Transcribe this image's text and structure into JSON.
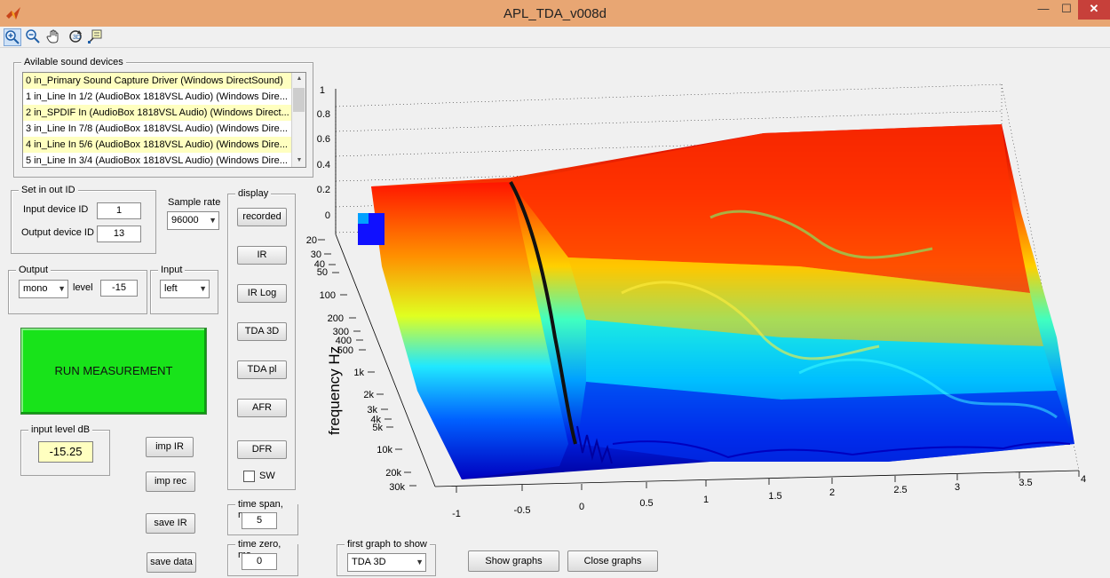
{
  "window": {
    "title": "APL_TDA_v008d",
    "minimize_glyph": "—",
    "maximize_glyph": "☐",
    "close_glyph": "✕"
  },
  "toolbar": {
    "tools": [
      "zoom-in-icon",
      "zoom-out-icon",
      "pan-hand-icon",
      "rotate-3d-icon",
      "data-cursor-icon"
    ]
  },
  "devices": {
    "legend": "Avilable sound devices",
    "items": [
      {
        "label": "0 in_Primary Sound Capture Driver (Windows DirectSound)"
      },
      {
        "label": "1 in_Line In 1/2 (AudioBox 1818VSL Audio) (Windows Dire..."
      },
      {
        "label": "2 in_SPDIF In (AudioBox 1818VSL Audio) (Windows Direct..."
      },
      {
        "label": "3 in_Line In 7/8 (AudioBox 1818VSL Audio) (Windows Dire..."
      },
      {
        "label": "4 in_Line In 5/6 (AudioBox 1818VSL Audio) (Windows Dire..."
      },
      {
        "label": "5 in_Line In 3/4 (AudioBox 1818VSL Audio) (Windows Dire..."
      }
    ]
  },
  "io_id": {
    "legend": "Set in out ID",
    "input_label": "Input device ID",
    "input_value": "1",
    "output_label": "Output device ID",
    "output_value": "13"
  },
  "sample_rate": {
    "label": "Sample rate",
    "value": "96000"
  },
  "output": {
    "legend": "Output",
    "mode": "mono",
    "level_label": "level",
    "level_value": "-15"
  },
  "input": {
    "legend": "Input",
    "channel": "left"
  },
  "run_button": "RUN MEASUREMENT",
  "input_level": {
    "legend": "input level dB",
    "value": "-15.25"
  },
  "buttons": {
    "imp_ir": "imp IR",
    "imp_rec": "imp rec",
    "save_ir": "save IR",
    "save_data": "save data"
  },
  "display": {
    "legend": "display",
    "buttons": [
      "recorded",
      "IR",
      "IR Log",
      "TDA 3D",
      "TDA pl",
      "AFR",
      "DFR"
    ],
    "sw_label": "SW"
  },
  "time_span": {
    "legend": "time span, ms",
    "value": "5"
  },
  "time_zero": {
    "legend": "time zero, ms",
    "value": "0"
  },
  "first_graph": {
    "legend": "first graph to show",
    "value": "TDA 3D"
  },
  "show_graphs": "Show graphs",
  "close_graphs": "Close graphs",
  "chart_data": {
    "type": "surface",
    "title": "",
    "ylabel": "frequency  Hz",
    "z_ticks": [
      "0",
      "0.2",
      "0.4",
      "0.6",
      "0.8",
      "1"
    ],
    "z_range": [
      0,
      1
    ],
    "y_ticks": [
      "20",
      "30",
      "40",
      "50",
      "100",
      "200",
      "300",
      "400",
      "500",
      "1k",
      "2k",
      "3k",
      "4k",
      "5k",
      "10k",
      "20k",
      "30k"
    ],
    "x_ticks": [
      "-1",
      "-0.5",
      "0",
      "0.5",
      "1",
      "1.5",
      "2",
      "2.5",
      "3",
      "3.5",
      "4"
    ],
    "x_range": [
      -1,
      4
    ],
    "colormap": [
      "#00008f",
      "#0000ff",
      "#00ffff",
      "#ffff00",
      "#ff0000",
      "#800000"
    ],
    "grid": true
  }
}
